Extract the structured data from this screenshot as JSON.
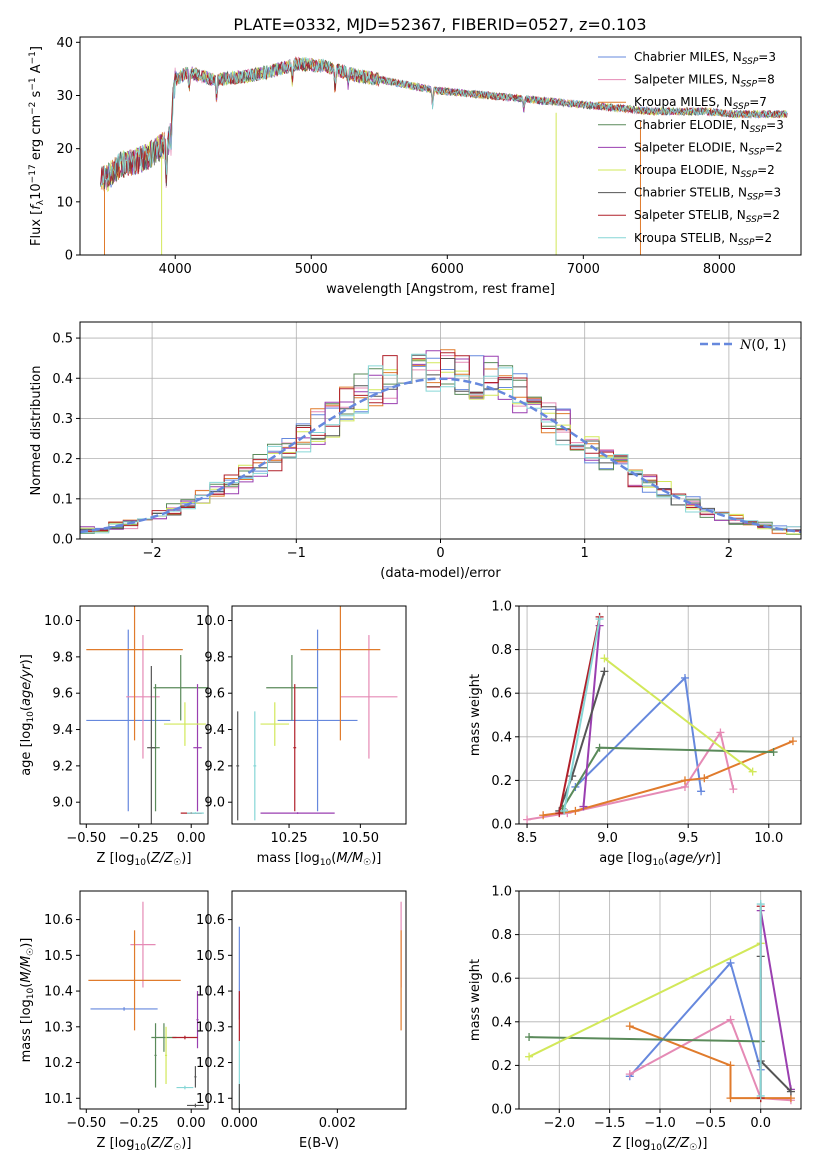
{
  "figure_title": "PLATE=0332, MJD=52367, FIBERID=0527, z=0.103",
  "colors": {
    "Chabrier MILES": "#6688dd",
    "Salpeter MILES": "#e58ab5",
    "Kroupa MILES": "#e07b2c",
    "Chabrier ELODIE": "#5a8a5a",
    "Salpeter ELODIE": "#9a3fb0",
    "Kroupa ELODIE": "#d2e85a",
    "Chabrier STELIB": "#555555",
    "Salpeter STELIB": "#b0202a",
    "Kroupa STELIB": "#86d6d6",
    "normal_curve": "#6688dd",
    "grid": "#b0b0b0"
  },
  "chart_data": [
    {
      "id": "spectrum",
      "type": "line",
      "xlabel": "wavelength [Angstrom, rest frame]",
      "ylabel": "Flux [f_λ 10^-17 erg cm^-2 s^-1 A^-1]",
      "xlim": [
        3300,
        8600
      ],
      "ylim": [
        0,
        41
      ],
      "xticks": [
        4000,
        5000,
        6000,
        7000,
        8000
      ],
      "yticks": [
        0,
        10,
        20,
        30,
        40
      ],
      "grid": false,
      "legend_position": "top-right",
      "continuum": {
        "x": [
          3450,
          3500,
          3600,
          3700,
          3800,
          3900,
          3950,
          4000,
          4100,
          4200,
          4300,
          4500,
          4700,
          4900,
          5100,
          5300,
          5500,
          5700,
          5900,
          6100,
          6300,
          6500,
          6700,
          6900,
          7100,
          7300,
          7500,
          7700,
          7900,
          8100,
          8300,
          8500
        ],
        "y": [
          14,
          14.5,
          17,
          17.5,
          18.5,
          20.5,
          21,
          33,
          34.5,
          33.5,
          33,
          33.5,
          34.5,
          36,
          35.5,
          34,
          33,
          32,
          31,
          30.5,
          30,
          29.5,
          29,
          28.5,
          28,
          27.5,
          27,
          27,
          27,
          26.5,
          26.5,
          26.5
        ]
      },
      "series": [
        {
          "name": "Chabrier MILES",
          "n_ssp": "3"
        },
        {
          "name": "Salpeter MILES",
          "n_ssp": "8"
        },
        {
          "name": "Kroupa MILES",
          "n_ssp": "7"
        },
        {
          "name": "Chabrier ELODIE",
          "n_ssp": "3"
        },
        {
          "name": "Salpeter ELODIE",
          "n_ssp": "2"
        },
        {
          "name": "Kroupa ELODIE",
          "n_ssp": "2"
        },
        {
          "name": "Chabrier STELIB",
          "n_ssp": "3"
        },
        {
          "name": "Salpeter STELIB",
          "n_ssp": "2"
        },
        {
          "name": "Kroupa STELIB",
          "n_ssp": "2"
        }
      ]
    },
    {
      "id": "residuals",
      "type": "histogram",
      "xlabel": "(data-model)/error",
      "ylabel": "Normed distribution",
      "xlim": [
        -2.5,
        2.5
      ],
      "ylim": [
        0,
        0.54
      ],
      "xticks": [
        -2,
        -1,
        0,
        1,
        2
      ],
      "yticks": [
        0.0,
        0.1,
        0.2,
        0.3,
        0.4,
        0.5
      ],
      "grid": true,
      "legend_position": "top-right",
      "legend_label": "N(0,1)",
      "bin_width": 0.1,
      "normal": {
        "mean": 0,
        "std": 1
      }
    },
    {
      "id": "age-vs-Z",
      "type": "scatter",
      "xlabel": "Z [log10(Z/Z☉)]",
      "ylabel": "age [log10(age/yr)]",
      "xlim": [
        -0.53,
        0.08
      ],
      "ylim": [
        8.88,
        10.08
      ],
      "xticks": [
        -0.5,
        -0.25,
        0.0
      ],
      "yticks": [
        9.0,
        9.2,
        9.4,
        9.6,
        9.8,
        10.0
      ],
      "grid": false,
      "points": [
        {
          "series": "Chabrier MILES",
          "x": -0.3,
          "xerr": 0.2,
          "y": 9.45,
          "yerr": 0.5
        },
        {
          "series": "Salpeter MILES",
          "x": -0.23,
          "xerr": 0.08,
          "y": 9.58,
          "yerr": 0.34
        },
        {
          "series": "Kroupa MILES",
          "x": -0.27,
          "xerr": 0.23,
          "y": 9.84,
          "yerr": 0.5
        },
        {
          "series": "Chabrier ELODIE",
          "x": -0.05,
          "xerr": 0.13,
          "y": 9.63,
          "yerr": 0.18
        },
        {
          "series": "Chabrier ELODIE",
          "x": -0.17,
          "xerr": 0.02,
          "y": 9.3,
          "yerr": 0.35
        },
        {
          "series": "Salpeter ELODIE",
          "x": 0.03,
          "xerr": 0.02,
          "y": 9.3,
          "yerr": 0.35
        },
        {
          "series": "Kroupa ELODIE",
          "x": -0.03,
          "xerr": 0.1,
          "y": 9.43,
          "yerr": 0.12
        },
        {
          "series": "Chabrier STELIB",
          "x": -0.19,
          "xerr": 0.02,
          "y": 9.3,
          "yerr": 0.45
        },
        {
          "series": "Salpeter STELIB",
          "x": 0.0,
          "xerr": 0.05,
          "y": 8.94,
          "yerr": 0.005
        },
        {
          "series": "Kroupa STELIB",
          "x": 0.02,
          "xerr": 0.04,
          "y": 8.94,
          "yerr": 0.005
        }
      ]
    },
    {
      "id": "age-vs-mass",
      "type": "scatter",
      "xlabel": "mass [log10(M/M☉)]",
      "ylabel": "",
      "xlim": [
        10.05,
        10.66
      ],
      "ylim": [
        8.88,
        10.08
      ],
      "xticks": [
        10.25,
        10.5
      ],
      "yticks": [
        9.0,
        9.2,
        9.4,
        9.6,
        9.8,
        10.0
      ],
      "grid": false,
      "points": [
        {
          "series": "Chabrier MILES",
          "x": 10.35,
          "xerr": 0.14,
          "y": 9.45,
          "yerr": 0.5
        },
        {
          "series": "Salpeter MILES",
          "x": 10.53,
          "xerr": 0.1,
          "y": 9.58,
          "yerr": 0.34
        },
        {
          "series": "Kroupa MILES",
          "x": 10.43,
          "xerr": 0.14,
          "y": 9.84,
          "yerr": 0.5
        },
        {
          "series": "Chabrier ELODIE",
          "x": 10.26,
          "xerr": 0.09,
          "y": 9.63,
          "yerr": 0.18
        },
        {
          "series": "Salpeter ELODIE",
          "x": 10.28,
          "xerr": 0.13,
          "y": 8.94,
          "yerr": 0.005
        },
        {
          "series": "Kroupa ELODIE",
          "x": 10.2,
          "xerr": 0.05,
          "y": 9.43,
          "yerr": 0.12
        },
        {
          "series": "Chabrier STELIB",
          "x": 10.07,
          "xerr": 0.005,
          "y": 9.2,
          "yerr": 0.3
        },
        {
          "series": "Salpeter STELIB",
          "x": 10.27,
          "xerr": 0.005,
          "y": 9.3,
          "yerr": 0.35
        },
        {
          "series": "Kroupa STELIB",
          "x": 10.13,
          "xerr": 0.005,
          "y": 9.2,
          "yerr": 0.3
        }
      ]
    },
    {
      "id": "weight-vs-age",
      "type": "line",
      "xlabel": "age [log10(age/yr)]",
      "ylabel": "mass weight",
      "xlim": [
        8.45,
        10.2
      ],
      "ylim": [
        0,
        1
      ],
      "xticks": [
        8.5,
        9.0,
        9.5,
        10.0
      ],
      "yticks": [
        0.0,
        0.2,
        0.4,
        0.6,
        0.8,
        1.0
      ],
      "grid": true,
      "series": [
        {
          "series": "Chabrier MILES",
          "points": [
            [
              8.8,
              0.17
            ],
            [
              9.48,
              0.67
            ],
            [
              9.58,
              0.15
            ]
          ]
        },
        {
          "series": "Salpeter MILES",
          "points": [
            [
              8.5,
              0.02
            ],
            [
              8.75,
              0.05
            ],
            [
              9.48,
              0.17
            ],
            [
              9.7,
              0.42
            ],
            [
              9.78,
              0.16
            ]
          ]
        },
        {
          "series": "Kroupa MILES",
          "points": [
            [
              8.6,
              0.04
            ],
            [
              8.8,
              0.06
            ],
            [
              9.48,
              0.2
            ],
            [
              9.6,
              0.21
            ],
            [
              10.15,
              0.38
            ]
          ]
        },
        {
          "series": "Chabrier ELODIE",
          "points": [
            [
              8.72,
              0.07
            ],
            [
              8.95,
              0.35
            ],
            [
              10.03,
              0.33
            ]
          ]
        },
        {
          "series": "Salpeter ELODIE",
          "points": [
            [
              8.85,
              0.08
            ],
            [
              8.95,
              0.91
            ]
          ]
        },
        {
          "series": "Kroupa ELODIE",
          "points": [
            [
              8.98,
              0.76
            ],
            [
              9.9,
              0.24
            ]
          ]
        },
        {
          "series": "Chabrier STELIB",
          "points": [
            [
              8.7,
              0.06
            ],
            [
              8.78,
              0.22
            ],
            [
              8.98,
              0.7
            ]
          ]
        },
        {
          "series": "Salpeter STELIB",
          "points": [
            [
              8.7,
              0.05
            ],
            [
              8.95,
              0.95
            ]
          ]
        },
        {
          "series": "Kroupa STELIB",
          "points": [
            [
              8.73,
              0.06
            ],
            [
              8.95,
              0.94
            ]
          ]
        }
      ]
    },
    {
      "id": "mass-vs-Z",
      "type": "scatter",
      "xlabel": "Z [log10(Z/Z☉)]",
      "ylabel": "mass [log10(M/M☉)]",
      "xlim": [
        -0.53,
        0.08
      ],
      "ylim": [
        10.07,
        10.68
      ],
      "xticks": [
        -0.5,
        -0.25,
        0.0
      ],
      "yticks": [
        10.1,
        10.2,
        10.3,
        10.4,
        10.5,
        10.6
      ],
      "grid": false,
      "points": [
        {
          "series": "Chabrier MILES",
          "x": -0.32,
          "xerr": 0.16,
          "y": 10.35,
          "yerr": 0.005
        },
        {
          "series": "Salpeter MILES",
          "x": -0.23,
          "xerr": 0.06,
          "y": 10.53,
          "yerr": 0.12
        },
        {
          "series": "Kroupa MILES",
          "x": -0.27,
          "xerr": 0.22,
          "y": 10.43,
          "yerr": 0.14
        },
        {
          "series": "Chabrier ELODIE",
          "x": -0.13,
          "xerr": 0.06,
          "y": 10.27,
          "yerr": 0.04
        },
        {
          "series": "Chabrier ELODIE",
          "x": -0.17,
          "xerr": 0.005,
          "y": 10.22,
          "yerr": 0.09
        },
        {
          "series": "Salpeter ELODIE",
          "x": 0.03,
          "xerr": 0.005,
          "y": 10.32,
          "yerr": 0.08
        },
        {
          "series": "Kroupa ELODIE",
          "x": -0.12,
          "xerr": 0.005,
          "y": 10.22,
          "yerr": 0.08
        },
        {
          "series": "Chabrier STELIB",
          "x": 0.02,
          "xerr": 0.04,
          "y": 10.08,
          "yerr": 0.005
        },
        {
          "series": "Salpeter STELIB",
          "x": -0.03,
          "xerr": 0.06,
          "y": 10.27,
          "yerr": 0.005
        },
        {
          "series": "Kroupa STELIB",
          "x": -0.03,
          "xerr": 0.04,
          "y": 10.13,
          "yerr": 0.005
        },
        {
          "series": "Chabrier STELIB",
          "x": 0.02,
          "xerr": 0.005,
          "y": 10.16,
          "yerr": 0.03
        }
      ]
    },
    {
      "id": "mass-vs-EBV",
      "type": "scatter",
      "xlabel": "E(B-V)",
      "ylabel": "",
      "xlim": [
        -0.00015,
        0.0034
      ],
      "ylim": [
        10.07,
        10.68
      ],
      "xticks": [
        0.0,
        0.002
      ],
      "yticks": [
        10.1,
        10.2,
        10.3,
        10.4,
        10.5,
        10.6
      ],
      "grid": false,
      "points": [
        {
          "series": "Chabrier MILES",
          "x": 0.0,
          "xerr": 0,
          "y": 10.45,
          "yerr": 0.13
        },
        {
          "series": "Salpeter STELIB",
          "x": 0.0,
          "xerr": 0,
          "y": 10.33,
          "yerr": 0.07
        },
        {
          "series": "Kroupa STELIB",
          "x": 0.0,
          "xerr": 0,
          "y": 10.16,
          "yerr": 0.1
        },
        {
          "series": "Chabrier STELIB",
          "x": 0.0,
          "xerr": 0,
          "y": 10.1,
          "yerr": 0.04
        },
        {
          "series": "Salpeter MILES",
          "x": 0.0033,
          "xerr": 0,
          "y": 10.53,
          "yerr": 0.12
        },
        {
          "series": "Kroupa MILES",
          "x": 0.0033,
          "xerr": 0,
          "y": 10.43,
          "yerr": 0.14
        }
      ]
    },
    {
      "id": "weight-vs-Z",
      "type": "line",
      "xlabel": "Z [log10(Z/Z☉)]",
      "ylabel": "mass weight",
      "xlim": [
        -2.4,
        0.4
      ],
      "ylim": [
        0,
        1
      ],
      "xticks": [
        -2.0,
        -1.5,
        -1.0,
        -0.5,
        0.0
      ],
      "yticks": [
        0.0,
        0.2,
        0.4,
        0.6,
        0.8,
        1.0
      ],
      "grid": true,
      "series": [
        {
          "series": "Chabrier MILES",
          "points": [
            [
              -1.3,
              0.15
            ],
            [
              -0.3,
              0.67
            ],
            [
              0.0,
              0.18
            ]
          ]
        },
        {
          "series": "Salpeter MILES",
          "points": [
            [
              -1.3,
              0.16
            ],
            [
              -0.3,
              0.41
            ],
            [
              0.0,
              0.05
            ],
            [
              0.3,
              0.04
            ]
          ]
        },
        {
          "series": "Kroupa MILES",
          "points": [
            [
              -1.3,
              0.38
            ],
            [
              -0.3,
              0.2
            ],
            [
              -0.3,
              0.05
            ],
            [
              0.0,
              0.05
            ],
            [
              0.3,
              0.05
            ]
          ]
        },
        {
          "series": "Chabrier ELODIE",
          "points": [
            [
              -2.3,
              0.33
            ],
            [
              0.0,
              0.31
            ]
          ]
        },
        {
          "series": "Salpeter ELODIE",
          "points": [
            [
              0.0,
              0.91
            ],
            [
              0.3,
              0.09
            ]
          ]
        },
        {
          "series": "Kroupa ELODIE",
          "points": [
            [
              -2.3,
              0.24
            ],
            [
              0.0,
              0.76
            ]
          ]
        },
        {
          "series": "Chabrier STELIB",
          "points": [
            [
              0.0,
              0.7
            ],
            [
              0.0,
              0.22
            ],
            [
              0.3,
              0.08
            ]
          ]
        },
        {
          "series": "Salpeter STELIB",
          "points": [
            [
              0.0,
              0.05
            ],
            [
              0.0,
              0.93
            ]
          ]
        },
        {
          "series": "Kroupa STELIB",
          "points": [
            [
              0.0,
              0.06
            ],
            [
              0.0,
              0.94
            ]
          ]
        }
      ]
    }
  ]
}
